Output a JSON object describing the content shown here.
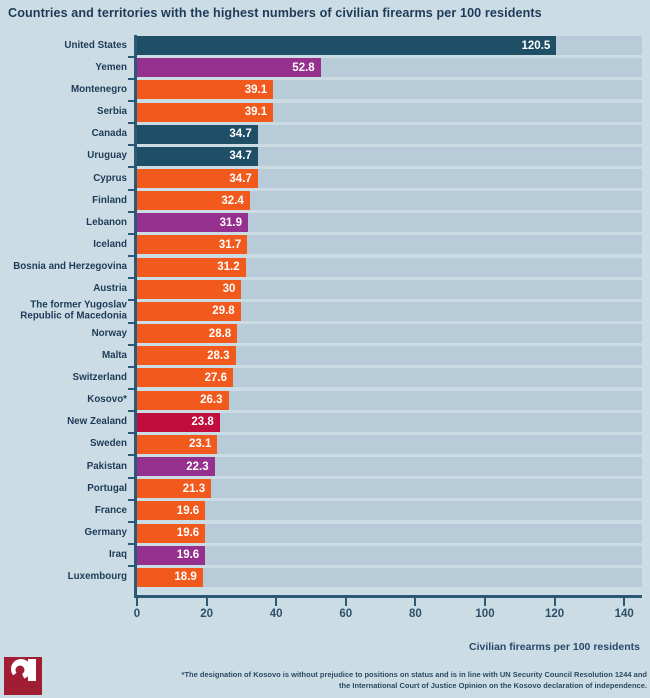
{
  "chart_data": {
    "type": "bar",
    "orientation": "horizontal",
    "title": "Countries and territories with the highest numbers of civilian firearms per 100 residents",
    "xlabel": "Civilian firearms per 100 residents",
    "xlim": [
      0,
      140
    ],
    "xticks": [
      0,
      20,
      40,
      60,
      80,
      100,
      120,
      140
    ],
    "grid": false,
    "legend": "none",
    "categories": [
      "United States",
      "Yemen",
      "Montenegro",
      "Serbia",
      "Canada",
      "Uruguay",
      "Cyprus",
      "Finland",
      "Lebanon",
      "Iceland",
      "Bosnia and Herzegovina",
      "Austria",
      "The former Yugoslav Republic of Macedonia",
      "Norway",
      "Malta",
      "Switzerland",
      "Kosovo*",
      "New Zealand",
      "Sweden",
      "Pakistan",
      "Portugal",
      "France",
      "Germany",
      "Iraq",
      "Luxembourg"
    ],
    "values": [
      120.5,
      52.8,
      39.1,
      39.1,
      34.7,
      34.7,
      34.7,
      32.4,
      31.9,
      31.7,
      31.2,
      30,
      29.8,
      28.8,
      28.3,
      27.6,
      26.3,
      23.8,
      23.1,
      22.3,
      21.3,
      19.6,
      19.6,
      19.6,
      18.9
    ],
    "value_labels": [
      "120.5",
      "52.8",
      "39.1",
      "39.1",
      "34.7",
      "34.7",
      "34.7",
      "32.4",
      "31.9",
      "31.7",
      "31.2",
      "30",
      "29.8",
      "28.8",
      "28.3",
      "27.6",
      "26.3",
      "23.8",
      "23.1",
      "22.3",
      "21.3",
      "19.6",
      "19.6",
      "19.6",
      "18.9"
    ],
    "bar_colors": [
      "#1f4f66",
      "#96308e",
      "#f2591d",
      "#f2591d",
      "#1f4f66",
      "#1f4f66",
      "#f2591d",
      "#f2591d",
      "#96308e",
      "#f2591d",
      "#f2591d",
      "#f2591d",
      "#f2591d",
      "#f2591d",
      "#f2591d",
      "#f2591d",
      "#f2591d",
      "#c00d3d",
      "#f2591d",
      "#96308e",
      "#f2591d",
      "#f2591d",
      "#f2591d",
      "#96308e",
      "#f2591d"
    ]
  },
  "footnote": {
    "line1": "*The designation of Kosovo is without prejudice to positions on status and is in line with UN Security Council Resolution 1244 and",
    "line2": "the International Court of Justice Opinion on the Kosovo declaration of independence."
  },
  "colors": {
    "background": "#ccdce4",
    "row_stripe": "#b7cbd8",
    "axis": "#2b5874",
    "title_text": "#1d3b58",
    "tick_label_text": "#2f5068",
    "value_text": "#ffffff",
    "bar_teal": "#1f4f66",
    "bar_orange": "#f2591d",
    "bar_purple": "#96308e",
    "bar_crimson": "#c00d3d",
    "logo_maroon": "#a01d33"
  }
}
